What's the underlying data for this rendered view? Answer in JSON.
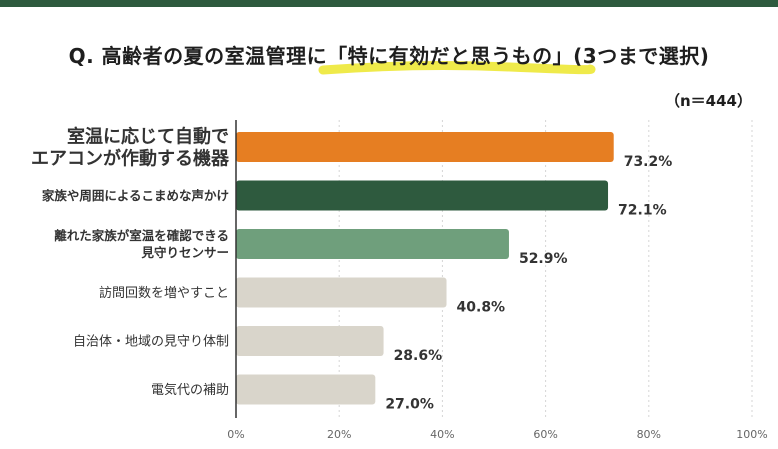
{
  "colors": {
    "top_band": "#2e5a3e",
    "highlight": "#ece62a",
    "grid": "#d5d5d5",
    "axis": "#333333"
  },
  "title": {
    "text": "Q. 高齢者の夏の室温管理に「特に有効だと思うもの」(3つまで選択)"
  },
  "sample_label": "（n＝444）",
  "chart_data": {
    "type": "bar",
    "orientation": "horizontal",
    "categories": [
      [
        "室温に応じて自動で",
        "エアコンが作動する機器"
      ],
      [
        "家族や周囲によるこまめな声かけ"
      ],
      [
        "離れた家族が室温を確認できる",
        "見守りセンサー"
      ],
      [
        "訪問回数を増やすこと"
      ],
      [
        "自治体・地域の見守り体制"
      ],
      [
        "電気代の補助"
      ]
    ],
    "values": [
      73.2,
      72.1,
      52.9,
      40.8,
      28.6,
      27.0
    ],
    "value_labels": [
      "73.2%",
      "72.1%",
      "52.9%",
      "40.8%",
      "28.6%",
      "27.0%"
    ],
    "bar_colors": [
      "#e67e22",
      "#2e5a3e",
      "#6f9f7c",
      "#d9d5cb",
      "#d9d5cb",
      "#d9d5cb"
    ],
    "label_styles": [
      "large-bold",
      "bold",
      "bold",
      "normal",
      "normal",
      "normal"
    ],
    "xlim": [
      0,
      100
    ],
    "xticks": [
      0,
      20,
      40,
      60,
      80,
      100
    ],
    "xtick_labels": [
      "0%",
      "20%",
      "40%",
      "60%",
      "80%",
      "100%"
    ],
    "grid": true
  }
}
